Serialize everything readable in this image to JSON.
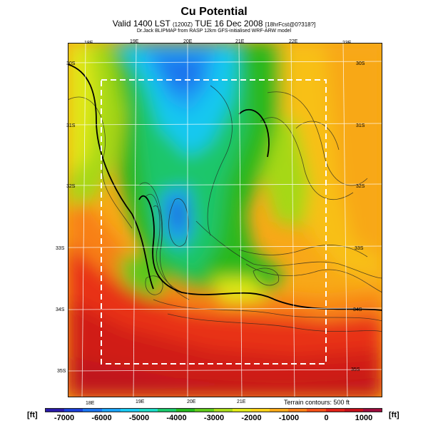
{
  "header": {
    "title": "Cu Potential",
    "subtitle_main": "Valid 1400 LST",
    "subtitle_code": "(1200Z)",
    "subtitle_date": "TUE 16 Dec 2008",
    "subtitle_tag": "[18hrFcst@0?318?]",
    "credit": "Dr.Jack BLIPMAP from RASP 12km GFS-initialised WRF-ARW model"
  },
  "map": {
    "lon_labels_top": [
      "18E",
      "19E",
      "20E",
      "21E",
      "22E",
      "23E"
    ],
    "lon_labels_bottom": [
      "18E",
      "19E",
      "20E",
      "21E"
    ],
    "lat_labels_left": [
      "30S",
      "31S",
      "32S",
      "33S",
      "34S",
      "35S"
    ],
    "lat_labels_right": [
      "30S",
      "31S",
      "32S",
      "33S",
      "34S",
      "35S"
    ],
    "terrain_note": "Terrain contours: 500 ft"
  },
  "colorbar": {
    "unit_left": "[ft]",
    "unit_right": "[ft]",
    "tick_labels": [
      "-7000",
      "-6000",
      "-5000",
      "-4000",
      "-3000",
      "-2000",
      "-1000",
      "0",
      "1000"
    ],
    "colors": [
      "#2a1aa8",
      "#1a3fd6",
      "#1a74ee",
      "#1aa2f5",
      "#19c8f0",
      "#1cd8c4",
      "#1ac66a",
      "#24b81c",
      "#5fc81a",
      "#a6d818",
      "#e0e818",
      "#f8d018",
      "#f8a818",
      "#f88018",
      "#f25018",
      "#e02218",
      "#c4101a",
      "#9c0c3c"
    ]
  },
  "colors": {
    "border": "#111111",
    "grid": "#ffffff",
    "domain_box": "#ffffff"
  }
}
